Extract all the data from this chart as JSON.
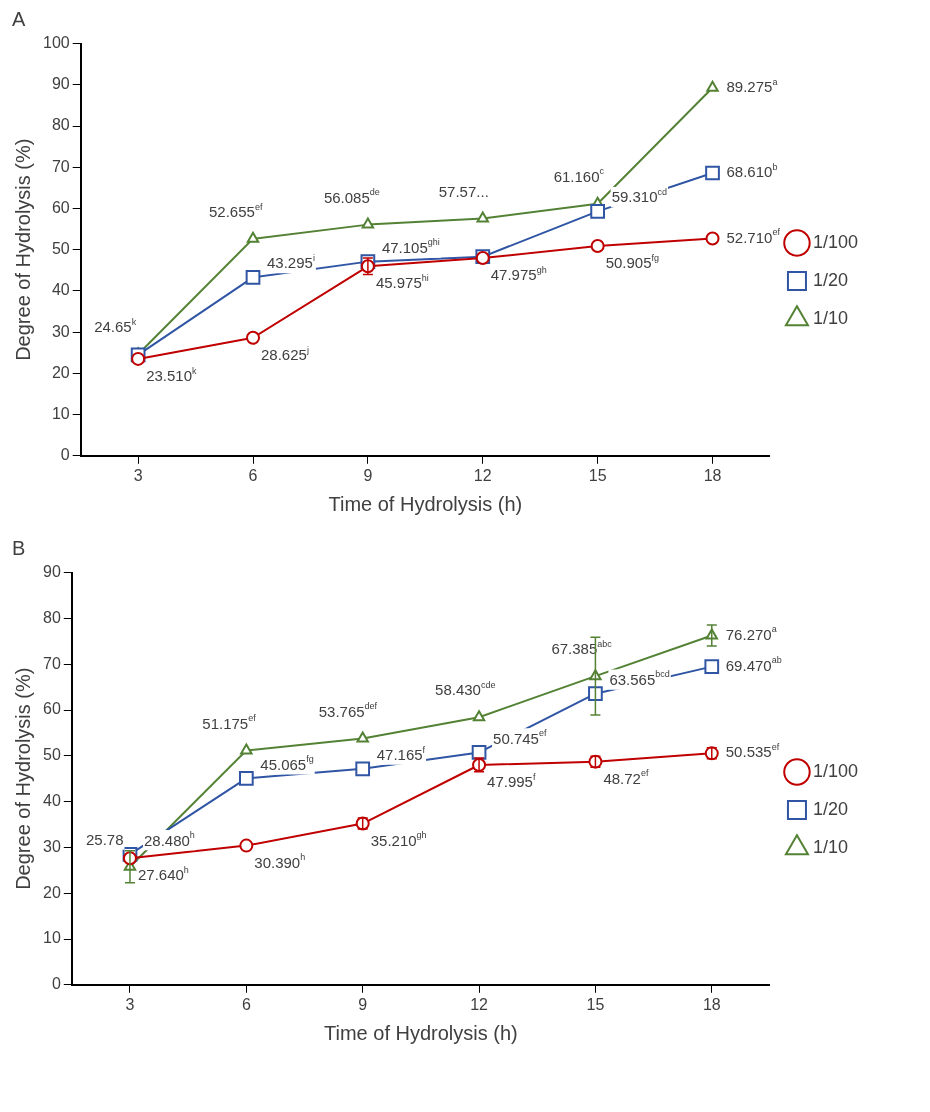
{
  "chart_data": [
    {
      "type": "line",
      "title": "A",
      "xlabel": "Time of Hydrolysis (h)",
      "ylabel": "Degree of Hydrolysis (%)",
      "categories": [
        "3",
        "6",
        "9",
        "12",
        "15",
        "18"
      ],
      "ylim": [
        0,
        100
      ],
      "yticks": [
        0,
        10,
        20,
        30,
        40,
        50,
        60,
        70,
        80,
        90,
        100
      ],
      "grid": false,
      "legend": "right",
      "series": [
        {
          "name": "1/100",
          "color": "#c00000",
          "marker": "circle",
          "values": [
            23.51,
            28.625,
            45.975,
            47.975,
            50.905,
            52.71
          ],
          "errors": [
            null,
            null,
            2,
            null,
            null,
            null
          ],
          "value_labels": [
            "23.510$^{k}$",
            "28.625$^{j}$",
            "45.975$^{hi}$",
            "47.975$^{gh}$",
            "50.905$^{fg}$",
            "52.710$^{ef}$"
          ]
        },
        {
          "name": "1/20",
          "color": "#2f55a4",
          "marker": "square",
          "values": [
            24.5,
            43.295,
            47.105,
            48.3,
            59.31,
            68.61
          ],
          "value_labels": [
            null,
            "43.295$^{i}$",
            "47.105$^{ghi}$",
            null,
            "59.310$^{cd}$",
            "68.610$^{b}$"
          ]
        },
        {
          "name": "1/10",
          "color": "#548235",
          "marker": "triangle",
          "values": [
            24.65,
            52.655,
            56.085,
            57.57,
            61.16,
            89.275
          ],
          "value_labels": [
            "24.65$^{k}$",
            "52.655$^{ef}$",
            "56.085$^{de}$",
            "57.57...",
            "61.160$^{c}$",
            "89.275$^{a}$"
          ]
        }
      ]
    },
    {
      "type": "line",
      "title": "B",
      "xlabel": "Time of Hydrolysis (h)",
      "ylabel": "Degree of Hydrolysis (%)",
      "categories": [
        "3",
        "6",
        "9",
        "12",
        "15",
        "18"
      ],
      "ylim": [
        0,
        90
      ],
      "yticks": [
        0,
        10,
        20,
        30,
        40,
        50,
        60,
        70,
        80,
        90
      ],
      "grid": false,
      "legend": "right",
      "series": [
        {
          "name": "1/100",
          "color": "#c00000",
          "marker": "circle",
          "values": [
            27.64,
            30.39,
            35.21,
            47.995,
            48.72,
            50.535
          ],
          "errors": [
            null,
            null,
            1.2,
            1.5,
            1.2,
            1.2
          ],
          "value_labels": [
            "27.640$^{h}$",
            "30.390$^{h}$",
            "35.210$^{gh}$",
            "47.995$^{f}$",
            "48.72$^{ef}$",
            "50.535$^{ef}$"
          ]
        },
        {
          "name": "1/20",
          "color": "#2f55a4",
          "marker": "square",
          "values": [
            28.48,
            45.065,
            47.165,
            50.745,
            63.565,
            69.47
          ],
          "value_labels": [
            "28.480$^{h}$",
            "45.065$^{fg}$",
            "47.165$^{f}$",
            "50.745$^{ef}$",
            "63.565$^{bcd}$",
            "69.470$^{ab}$"
          ]
        },
        {
          "name": "1/10",
          "color": "#548235",
          "marker": "triangle",
          "values": [
            25.78,
            51.175,
            53.765,
            58.43,
            67.385,
            76.27
          ],
          "errors": [
            3.5,
            null,
            null,
            null,
            8.5,
            2.3
          ],
          "value_labels": [
            "25.78",
            "51.175$^{ef}$",
            "53.765$^{def}$",
            "58.430$^{cde}$",
            "67.385$^{abc}$",
            "76.270$^{a}$"
          ]
        }
      ]
    }
  ]
}
